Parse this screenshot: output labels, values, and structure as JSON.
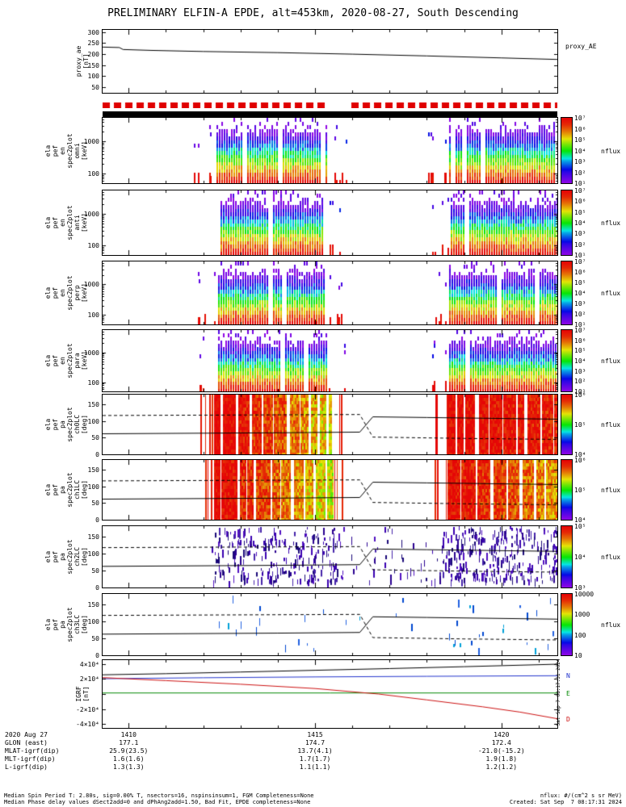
{
  "title": "PRELIMINARY ELFIN-A EPDE, alt=453km, 2020-08-27, South Descending",
  "colors": {
    "accent_red": "#e00000",
    "black": "#000000",
    "igrf_n": "#2233cc",
    "igrf_e": "#008800",
    "igrf_d": "#cc1111"
  },
  "time_axis": {
    "start": 1409.3,
    "end": 1421.5,
    "major_ticks": [
      1410,
      1415,
      1420
    ],
    "tick_labels": [
      "1410",
      "1415",
      "1420"
    ],
    "minor_tick_step": 1
  },
  "chart_data": [
    {
      "id": "proxy",
      "kind": "line",
      "ylabel_lines": [
        "proxy_ae",
        "[nT]"
      ],
      "right_label": "proxy_AE",
      "ylim": [
        25,
        310
      ],
      "yticks": [
        50,
        100,
        150,
        200,
        250,
        300
      ],
      "series": [
        {
          "name": "proxy_AE",
          "color": "#000000",
          "points": [
            [
              1409.3,
              232
            ],
            [
              1409.75,
              230
            ],
            [
              1409.85,
              221
            ],
            [
              1410.6,
              217
            ],
            [
              1412,
              212
            ],
            [
              1414,
              207
            ],
            [
              1416,
              200
            ],
            [
              1418,
              192
            ],
            [
              1420,
              183
            ],
            [
              1421.5,
              176
            ]
          ]
        }
      ]
    },
    {
      "id": "qbar",
      "kind": "quality_bar",
      "color": "#e00000",
      "gaps": [
        [
          1415.35,
          1415.8
        ]
      ]
    },
    {
      "id": "kbar",
      "kind": "solid_bar",
      "color": "#000000"
    },
    {
      "id": "omni",
      "kind": "espec",
      "ylabel_lines": [
        "ela",
        "pef",
        "en",
        "spec2plot",
        "omni",
        "[keV]"
      ],
      "ylim_kev": [
        50,
        5500
      ],
      "yticks_kev": [
        100,
        1000
      ],
      "log_range": [
        1,
        7
      ],
      "bursts": [
        [
          1412.25,
          1415.35
        ],
        [
          1418.6,
          1421.5
        ]
      ],
      "sparse": [
        [
          1411.6,
          1412.25
        ],
        [
          1415.35,
          1416.0
        ],
        [
          1418.0,
          1418.6
        ]
      ],
      "colorbar_ticks": [
        "10⁷",
        "10⁶",
        "10⁵",
        "10⁴",
        "10³",
        "10²",
        "10¹"
      ],
      "colorbar_label": "nflux",
      "seed": 11
    },
    {
      "id": "anti",
      "kind": "espec",
      "ylabel_lines": [
        "ela",
        "pef",
        "en",
        "spec2plot",
        "anti",
        "[keV]"
      ],
      "ylim_kev": [
        50,
        5500
      ],
      "yticks_kev": [
        100,
        1000
      ],
      "log_range": [
        1,
        7
      ],
      "bursts": [
        [
          1412.35,
          1415.3
        ],
        [
          1418.65,
          1421.5
        ]
      ],
      "sparse": [
        [
          1415.3,
          1415.7
        ],
        [
          1418.1,
          1418.65
        ]
      ],
      "colorbar_ticks": [
        "10⁷",
        "10⁶",
        "10⁵",
        "10⁴",
        "10³",
        "10²",
        "10¹"
      ],
      "colorbar_label": "nflux",
      "seed": 23
    },
    {
      "id": "perp",
      "kind": "espec",
      "ylabel_lines": [
        "ela",
        "pef",
        "en",
        "spec2plot",
        "perp",
        "[keV]"
      ],
      "ylim_kev": [
        50,
        5500
      ],
      "yticks_kev": [
        100,
        1000
      ],
      "log_range": [
        1,
        7
      ],
      "bursts": [
        [
          1412.3,
          1415.35
        ],
        [
          1418.6,
          1421.5
        ]
      ],
      "sparse": [
        [
          1411.8,
          1412.3
        ],
        [
          1415.35,
          1415.9
        ],
        [
          1418.1,
          1418.6
        ]
      ],
      "colorbar_ticks": [
        "10⁷",
        "10⁶",
        "10⁵",
        "10⁴",
        "10³",
        "10²",
        "10¹"
      ],
      "colorbar_label": "nflux",
      "seed": 37
    },
    {
      "id": "para",
      "kind": "espec",
      "ylabel_lines": [
        "ela",
        "pef",
        "en",
        "spec2plot",
        "para",
        "[keV]"
      ],
      "ylim_kev": [
        50,
        5500
      ],
      "yticks_kev": [
        100,
        1000
      ],
      "log_range": [
        1,
        7
      ],
      "bursts": [
        [
          1412.3,
          1415.35
        ],
        [
          1418.6,
          1421.5
        ]
      ],
      "sparse": [
        [
          1411.9,
          1412.3
        ],
        [
          1415.35,
          1415.8
        ],
        [
          1418.05,
          1418.6
        ]
      ],
      "colorbar_ticks": [
        "10⁷",
        "10⁶",
        "10⁵",
        "10⁴",
        "10³",
        "10²",
        "10¹"
      ],
      "colorbar_label": "nflux",
      "seed": 49
    },
    {
      "id": "ch0",
      "kind": "paspec",
      "ylabel_lines": [
        "ela",
        "pef",
        "pa",
        "spec2plot",
        "ch0LC",
        "[deg]"
      ],
      "ylim": [
        0,
        180
      ],
      "yticks": [
        0,
        50,
        100,
        150
      ],
      "log_range": [
        4,
        6
      ],
      "bursts": [
        [
          1412.3,
          1415.45
        ],
        [
          1418.55,
          1421.5
        ]
      ],
      "drift": [
        [
          6.05,
          5.35
        ],
        [
          6.0,
          5.85
        ]
      ],
      "sparse": [
        [
          1411.9,
          1412.3
        ],
        [
          1415.45,
          1415.8
        ],
        [
          1418.2,
          1418.55
        ]
      ],
      "colorbar_ticks": [
        "10⁶",
        "10⁵",
        "10⁴"
      ],
      "colorbar_label": "nflux",
      "losscone": {
        "solid": [
          [
            1409.3,
            62
          ],
          [
            1414,
            65
          ],
          [
            1416.2,
            67
          ],
          [
            1416.55,
            113
          ],
          [
            1418,
            111
          ],
          [
            1421.5,
            106
          ]
        ],
        "dashed": [
          [
            1409.3,
            117
          ],
          [
            1416.2,
            120
          ],
          [
            1416.55,
            52
          ],
          [
            1419,
            48
          ],
          [
            1421.5,
            45
          ]
        ]
      },
      "seed": 61
    },
    {
      "id": "ch1",
      "kind": "paspec",
      "ylabel_lines": [
        "ela",
        "pef",
        "pa",
        "spec2plot",
        "ch1LC",
        "[deg]"
      ],
      "ylim": [
        0,
        180
      ],
      "yticks": [
        0,
        50,
        100,
        150
      ],
      "log_range": [
        4,
        6
      ],
      "bursts": [
        [
          1412.3,
          1415.45
        ],
        [
          1418.55,
          1421.5
        ]
      ],
      "drift": [
        [
          6.0,
          5.3
        ],
        [
          5.95,
          5.5
        ]
      ],
      "sparse": [
        [
          1411.9,
          1412.3
        ],
        [
          1415.45,
          1415.8
        ],
        [
          1418.2,
          1418.55
        ]
      ],
      "colorbar_ticks": [
        "10⁶",
        "10⁵",
        "10⁴"
      ],
      "colorbar_label": "nflux",
      "losscone": {
        "solid": [
          [
            1409.3,
            62
          ],
          [
            1414,
            65
          ],
          [
            1416.2,
            67
          ],
          [
            1416.55,
            113
          ],
          [
            1418,
            111
          ],
          [
            1421.5,
            106
          ]
        ],
        "dashed": [
          [
            1409.3,
            117
          ],
          [
            1416.2,
            120
          ],
          [
            1416.55,
            52
          ],
          [
            1419,
            48
          ],
          [
            1421.5,
            45
          ]
        ]
      },
      "seed": 73
    },
    {
      "id": "ch2",
      "kind": "pascatter",
      "ylabel_lines": [
        "ela",
        "pef",
        "pa",
        "spec2plot",
        "ch2LC",
        "[deg]"
      ],
      "ylim": [
        0,
        180
      ],
      "yticks": [
        0,
        50,
        100,
        150
      ],
      "regions": [
        {
          "t": [
            1412.2,
            1415.7
          ],
          "n": 240
        },
        {
          "t": [
            1415.7,
            1418.4
          ],
          "n": 45
        },
        {
          "t": [
            1418.4,
            1421.5
          ],
          "n": 300
        }
      ],
      "palette": [
        "#3a00b0",
        "#2a0090",
        "#5010c0",
        "#1a0878",
        "#4422aa"
      ],
      "colorbar_ticks": [
        "10⁵",
        "10⁴",
        "10³"
      ],
      "colorbar_label": "nflux",
      "losscone": {
        "solid": [
          [
            1409.3,
            62
          ],
          [
            1414,
            65
          ],
          [
            1416.2,
            67
          ],
          [
            1416.55,
            113
          ],
          [
            1418,
            111
          ],
          [
            1421.5,
            106
          ]
        ],
        "dashed": [
          [
            1409.3,
            117
          ],
          [
            1416.2,
            120
          ],
          [
            1416.55,
            52
          ],
          [
            1419,
            48
          ],
          [
            1421.5,
            45
          ]
        ]
      },
      "seed": 87
    },
    {
      "id": "ch3",
      "kind": "pascatter",
      "ylabel_lines": [
        "ela",
        "pef",
        "pa",
        "spec2plot",
        "ch3LC",
        "[deg]"
      ],
      "ylim": [
        0,
        180
      ],
      "yticks": [
        0,
        50,
        100,
        150
      ],
      "regions": [
        {
          "t": [
            1412.4,
            1415.5
          ],
          "n": 14
        },
        {
          "t": [
            1415.5,
            1418.5
          ],
          "n": 5
        },
        {
          "t": [
            1418.5,
            1421.4
          ],
          "n": 22
        }
      ],
      "palette": [
        "#0048d0",
        "#00a0d8",
        "#2060e0"
      ],
      "colorbar_ticks": [
        "10000",
        "1000",
        "100",
        "10"
      ],
      "colorbar_label": "nflux",
      "losscone": {
        "solid": [
          [
            1409.3,
            62
          ],
          [
            1414,
            65
          ],
          [
            1416.2,
            67
          ],
          [
            1416.55,
            113
          ],
          [
            1418,
            111
          ],
          [
            1421.5,
            106
          ]
        ],
        "dashed": [
          [
            1409.3,
            117
          ],
          [
            1416.2,
            120
          ],
          [
            1416.55,
            52
          ],
          [
            1419,
            48
          ],
          [
            1421.5,
            45
          ]
        ]
      },
      "seed": 95
    },
    {
      "id": "igrf",
      "kind": "multiline",
      "ylabel_lines": [
        "IGRF",
        "[nT]"
      ],
      "ylim": [
        -45000,
        45000
      ],
      "yticks": [
        {
          "v": 40000,
          "label": "4×10⁴"
        },
        {
          "v": 20000,
          "label": "2×10⁴"
        },
        {
          "v": 0,
          "label": ""
        },
        {
          "v": -20000,
          "label": "-2×10⁴"
        },
        {
          "v": -40000,
          "label": "-4×10⁴"
        }
      ],
      "series": [
        {
          "name": "Bt",
          "color": "#000000",
          "points": [
            [
              1409.3,
              25500
            ],
            [
              1411,
              27000
            ],
            [
              1413,
              29200
            ],
            [
              1415,
              31500
            ],
            [
              1417,
              33800
            ],
            [
              1419,
              36300
            ],
            [
              1421.5,
              39600
            ]
          ]
        },
        {
          "name": "N",
          "color": "#2233cc",
          "points": [
            [
              1409.3,
              20300
            ],
            [
              1412,
              21600
            ],
            [
              1415,
              22700
            ],
            [
              1418,
              23500
            ],
            [
              1421.5,
              24300
            ]
          ]
        },
        {
          "name": "E",
          "color": "#008800",
          "points": [
            [
              1409.3,
              1400
            ],
            [
              1421.5,
              1400
            ]
          ]
        },
        {
          "name": "D",
          "color": "#cc1111",
          "points": [
            [
              1409.3,
              21800
            ],
            [
              1411,
              17800
            ],
            [
              1413,
              13000
            ],
            [
              1415,
              7300
            ],
            [
              1416.7,
              0
            ],
            [
              1418,
              -7800
            ],
            [
              1419.5,
              -17000
            ],
            [
              1420.5,
              -24000
            ],
            [
              1421.5,
              -32800
            ]
          ]
        }
      ],
      "right_labels": [
        {
          "text": "N",
          "color": "#2233cc",
          "v": 24300
        },
        {
          "text": "E",
          "color": "#008800",
          "v": 1400
        },
        {
          "text": "D",
          "color": "#cc1111",
          "v": -32800
        }
      ]
    }
  ],
  "bottom_axis": {
    "date_label": "2020 Aug 27",
    "tick_labels": [
      "1410",
      "1415",
      "1420"
    ],
    "rows": [
      {
        "label": "GLON (east)",
        "values": [
          "177.1",
          "174.7",
          "172.4"
        ]
      },
      {
        "label": "MLAT-igrf(dip)",
        "values": [
          "25.9(23.5)",
          "13.7(4.1)",
          "-21.0(-15.2)"
        ]
      },
      {
        "label": "MLT-igrf(dip)",
        "values": [
          "1.6(1.6)",
          "1.7(1.7)",
          "1.9(1.8)"
        ]
      },
      {
        "label": "L-igrf(dip)",
        "values": [
          "1.3(1.3)",
          "1.1(1.1)",
          "1.2(1.2)"
        ]
      }
    ]
  },
  "footer": {
    "left_lines": [
      "Median Spin Period T: 2.80s, sig=0.00% T, nsectors=16, nspinsinsum=1, FGM Completeness=None",
      "Median Phase delay values dSect2add=0 and dPhAng2add=1.50, Bad Fit, EPDE completeness=None"
    ],
    "right_lines": [
      "nflux: #/(cm^2 s sr MeV)",
      "Created: Sat Sep  7 08:17:31 2024"
    ],
    "side_timestamp": "Sat Sep 7 08:17:31 2024"
  }
}
